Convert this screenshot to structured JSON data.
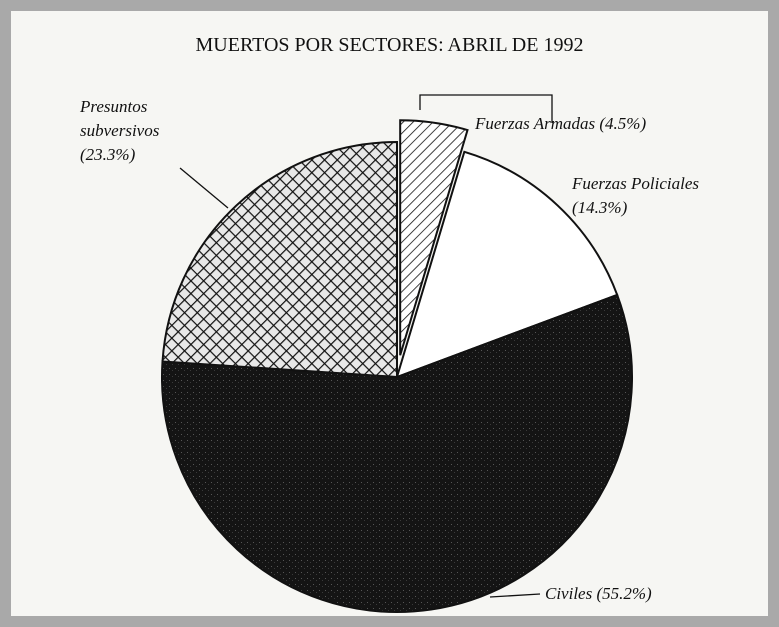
{
  "chart_data": {
    "type": "pie",
    "title": "MUERTOS POR SECTORES: ABRIL DE 1992",
    "categories": [
      "Fuerzas Armadas",
      "Fuerzas Policiales",
      "Civiles",
      "Presuntos subversivos"
    ],
    "values": [
      4.5,
      14.3,
      55.2,
      23.3
    ],
    "value_labels": [
      "(4.5%)",
      "(14.3%)",
      "(55.2%)",
      "(23.3%)"
    ]
  }
}
